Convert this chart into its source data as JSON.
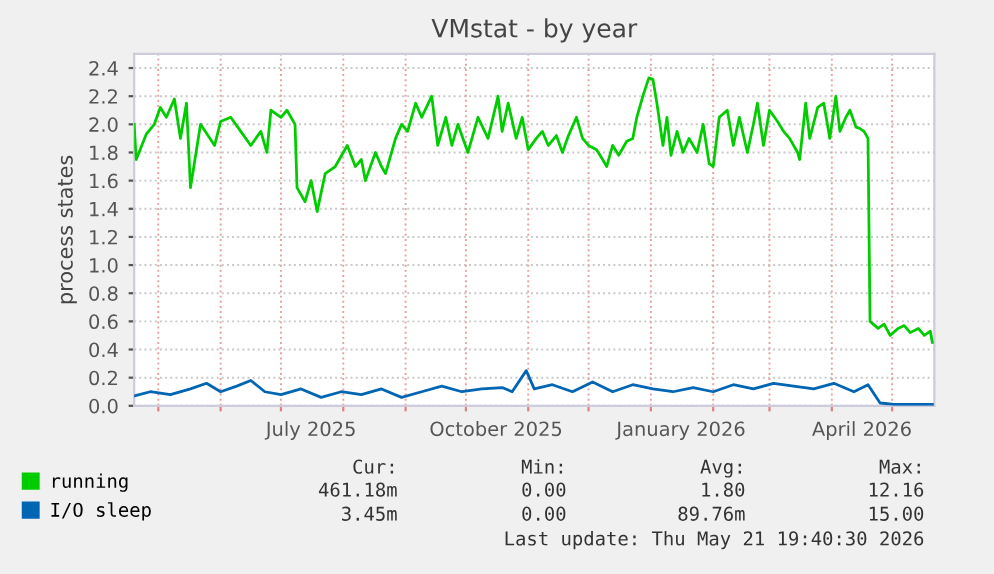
{
  "chart_data": {
    "type": "line",
    "title": "VMstat - by year",
    "ylabel": "process states",
    "xlim": [
      "2025-04-19",
      "2026-05-22"
    ],
    "ylim": [
      0,
      2.5
    ],
    "yticks": [
      {
        "value": 0,
        "label": "0.0"
      },
      {
        "value": 0.2,
        "label": "0.2"
      },
      {
        "value": 0.4,
        "label": "0.4"
      },
      {
        "value": 0.6,
        "label": "0.6"
      },
      {
        "value": 0.8,
        "label": "0.8"
      },
      {
        "value": 1.0,
        "label": "1.0"
      },
      {
        "value": 1.2,
        "label": "1.2"
      },
      {
        "value": 1.4,
        "label": "1.4"
      },
      {
        "value": 1.6,
        "label": "1.6"
      },
      {
        "value": 1.8,
        "label": "1.8"
      },
      {
        "value": 2.0,
        "label": "2.0"
      },
      {
        "value": 2.2,
        "label": "2.2"
      },
      {
        "value": 2.4,
        "label": "2.4"
      }
    ],
    "xticks": [
      {
        "value": "2025-05-01",
        "label": null
      },
      {
        "value": "2025-06-01",
        "label": null
      },
      {
        "value": "2025-07-01",
        "label": null
      },
      {
        "value": "2025-07-16",
        "label": "July 2025"
      },
      {
        "value": "2025-08-01",
        "label": null
      },
      {
        "value": "2025-09-01",
        "label": null
      },
      {
        "value": "2025-10-01",
        "label": null
      },
      {
        "value": "2025-10-16",
        "label": "October 2025"
      },
      {
        "value": "2025-11-01",
        "label": null
      },
      {
        "value": "2025-12-01",
        "label": null
      },
      {
        "value": "2026-01-01",
        "label": null
      },
      {
        "value": "2026-01-16",
        "label": "January 2026"
      },
      {
        "value": "2026-02-01",
        "label": null
      },
      {
        "value": "2026-03-01",
        "label": null
      },
      {
        "value": "2026-04-01",
        "label": null
      },
      {
        "value": "2026-04-16",
        "label": "April 2026"
      },
      {
        "value": "2026-05-01",
        "label": null
      }
    ],
    "grid": true,
    "legend": "bottom",
    "marker": "none",
    "line_style": "solid",
    "annotations": [
      "Cur:",
      "Min:",
      "Avg:",
      "Max:",
      "461.18m",
      "0.00",
      "1.80",
      "12.16",
      "3.45m",
      "0.00",
      "89.76m",
      "15.00",
      "Last update: Thu May 21 19:40:30 2026"
    ],
    "series": [
      {
        "name": "running",
        "color": "#00cc00",
        "x": [
          "2025-04-19",
          "2025-04-20",
          "2025-04-25",
          "2025-04-29",
          "2025-05-02",
          "2025-05-05",
          "2025-05-09",
          "2025-05-12",
          "2025-05-15",
          "2025-05-17",
          "2025-05-22",
          "2025-05-29",
          "2025-06-01",
          "2025-06-06",
          "2025-06-11",
          "2025-06-16",
          "2025-06-21",
          "2025-06-24",
          "2025-06-26",
          "2025-07-01",
          "2025-07-04",
          "2025-07-08",
          "2025-07-09",
          "2025-07-13",
          "2025-07-16",
          "2025-07-19",
          "2025-07-23",
          "2025-07-28",
          "2025-08-03",
          "2025-08-07",
          "2025-08-10",
          "2025-08-12",
          "2025-08-17",
          "2025-08-20",
          "2025-08-22",
          "2025-08-27",
          "2025-08-30",
          "2025-09-02",
          "2025-09-06",
          "2025-09-09",
          "2025-09-14",
          "2025-09-17",
          "2025-09-21",
          "2025-09-24",
          "2025-09-27",
          "2025-10-02",
          "2025-10-07",
          "2025-10-12",
          "2025-10-17",
          "2025-10-19",
          "2025-10-22",
          "2025-10-26",
          "2025-10-29",
          "2025-11-01",
          "2025-11-05",
          "2025-11-08",
          "2025-11-11",
          "2025-11-15",
          "2025-11-18",
          "2025-11-21",
          "2025-11-25",
          "2025-11-28",
          "2025-12-01",
          "2025-12-05",
          "2025-12-08",
          "2025-12-10",
          "2025-12-13",
          "2025-12-16",
          "2025-12-20",
          "2025-12-23",
          "2025-12-25",
          "2025-12-28",
          "2025-12-31",
          "2026-01-02",
          "2026-01-04",
          "2026-01-07",
          "2026-01-09",
          "2026-01-11",
          "2026-01-14",
          "2026-01-17",
          "2026-01-20",
          "2026-01-24",
          "2026-01-27",
          "2026-01-30",
          "2026-02-01",
          "2026-02-04",
          "2026-02-08",
          "2026-02-11",
          "2026-02-14",
          "2026-02-18",
          "2026-02-21",
          "2026-02-23",
          "2026-02-26",
          "2026-03-01",
          "2026-03-05",
          "2026-03-08",
          "2026-03-11",
          "2026-03-15",
          "2026-03-16",
          "2026-03-19",
          "2026-03-21",
          "2026-03-25",
          "2026-03-28",
          "2026-03-31",
          "2026-04-03",
          "2026-04-05",
          "2026-04-08",
          "2026-04-10",
          "2026-04-13",
          "2026-04-15",
          "2026-04-17",
          "2026-04-19",
          "2026-04-20",
          "2026-04-24",
          "2026-04-27",
          "2026-04-30",
          "2026-05-04",
          "2026-05-07",
          "2026-05-10",
          "2026-05-14",
          "2026-05-17",
          "2026-05-20",
          "2026-05-21"
        ],
        "values": [
          2.0,
          1.75,
          1.93,
          2.0,
          2.12,
          2.05,
          2.18,
          1.9,
          2.15,
          1.55,
          2.0,
          1.85,
          2.02,
          2.05,
          1.95,
          1.85,
          1.95,
          1.8,
          2.1,
          2.05,
          2.1,
          2.0,
          1.55,
          1.45,
          1.6,
          1.38,
          1.65,
          1.7,
          1.85,
          1.7,
          1.75,
          1.6,
          1.8,
          1.7,
          1.65,
          1.9,
          2.0,
          1.95,
          2.15,
          2.05,
          2.2,
          1.85,
          2.05,
          1.85,
          2.0,
          1.8,
          2.05,
          1.9,
          2.2,
          1.95,
          2.15,
          1.9,
          2.05,
          1.82,
          1.9,
          1.95,
          1.85,
          1.92,
          1.8,
          1.92,
          2.05,
          1.9,
          1.85,
          1.82,
          1.75,
          1.7,
          1.85,
          1.78,
          1.88,
          1.9,
          2.05,
          2.2,
          2.33,
          2.32,
          2.15,
          1.85,
          2.05,
          1.78,
          1.95,
          1.8,
          1.9,
          1.8,
          2.0,
          1.72,
          1.7,
          2.05,
          2.1,
          1.85,
          2.05,
          1.8,
          2.0,
          2.15,
          1.85,
          2.1,
          2.02,
          1.95,
          1.9,
          1.8,
          1.75,
          2.15,
          1.9,
          2.12,
          2.15,
          1.9,
          2.2,
          1.95,
          2.05,
          2.1,
          1.98,
          1.97,
          1.95,
          1.9,
          0.6,
          0.55,
          0.58,
          0.5,
          0.55,
          0.57,
          0.52,
          0.55,
          0.5,
          0.53,
          0.45
        ]
      },
      {
        "name": "I/O sleep",
        "color": "#0066b3",
        "x": [
          "2025-04-19",
          "2025-04-27",
          "2025-05-07",
          "2025-05-17",
          "2025-05-25",
          "2025-06-01",
          "2025-06-09",
          "2025-06-16",
          "2025-06-23",
          "2025-07-01",
          "2025-07-11",
          "2025-07-21",
          "2025-07-31",
          "2025-08-10",
          "2025-08-20",
          "2025-08-30",
          "2025-09-09",
          "2025-09-19",
          "2025-09-29",
          "2025-10-09",
          "2025-10-19",
          "2025-10-24",
          "2025-10-31",
          "2025-11-04",
          "2025-11-13",
          "2025-11-23",
          "2025-12-03",
          "2025-12-13",
          "2025-12-23",
          "2026-01-02",
          "2026-01-12",
          "2026-01-22",
          "2026-02-01",
          "2026-02-11",
          "2026-02-21",
          "2026-03-03",
          "2026-03-13",
          "2026-03-23",
          "2026-04-02",
          "2026-04-12",
          "2026-04-19",
          "2026-04-25",
          "2026-05-02",
          "2026-05-12",
          "2026-05-21"
        ],
        "values": [
          0.07,
          0.1,
          0.08,
          0.12,
          0.16,
          0.1,
          0.14,
          0.18,
          0.1,
          0.08,
          0.12,
          0.06,
          0.1,
          0.08,
          0.12,
          0.06,
          0.1,
          0.14,
          0.1,
          0.12,
          0.13,
          0.1,
          0.25,
          0.12,
          0.15,
          0.1,
          0.17,
          0.1,
          0.15,
          0.12,
          0.1,
          0.13,
          0.1,
          0.15,
          0.12,
          0.16,
          0.14,
          0.12,
          0.16,
          0.1,
          0.15,
          0.02,
          0.01,
          0.01,
          0.01
        ]
      }
    ]
  }
}
